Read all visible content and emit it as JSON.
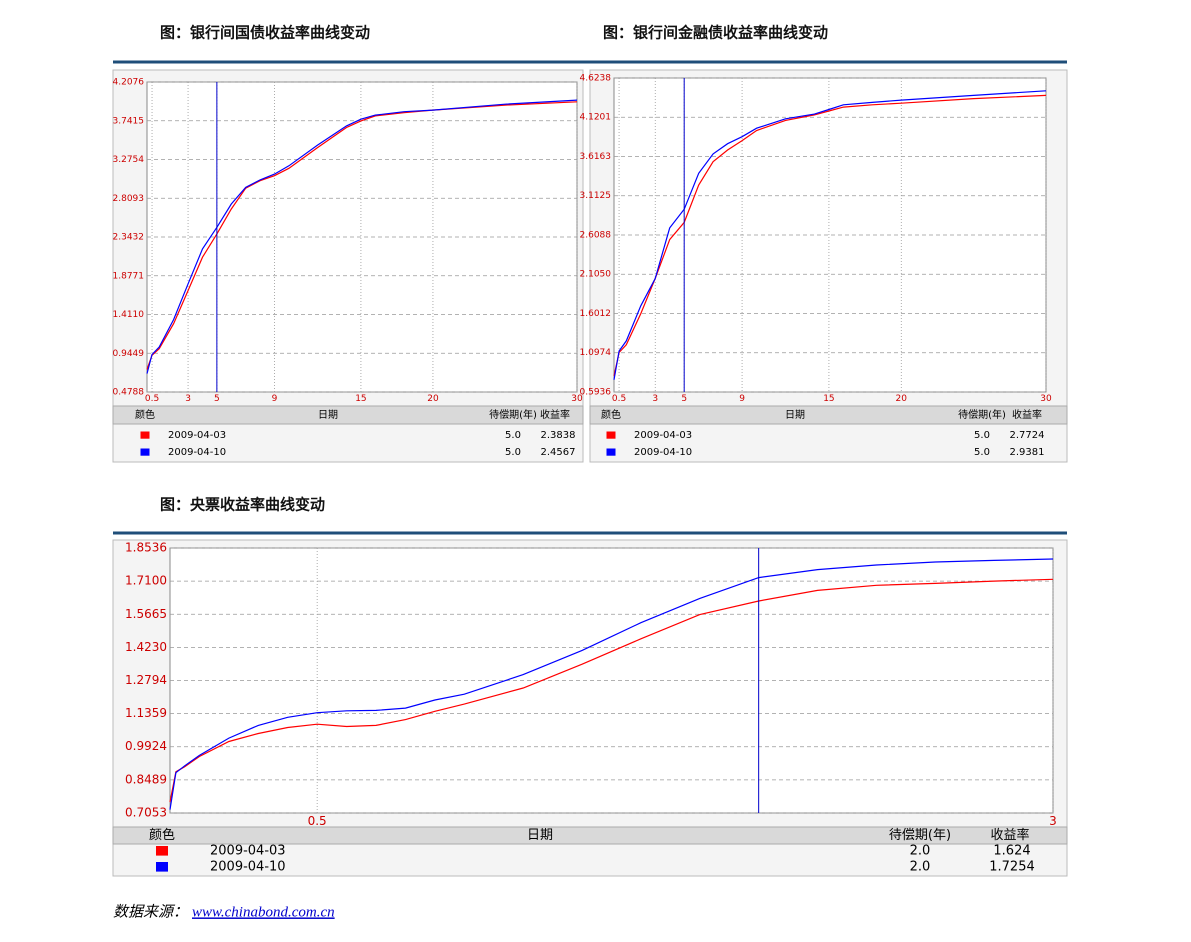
{
  "chart_data": [
    {
      "type": "line",
      "title": "图：银行间国债收益率曲线变动",
      "x": [
        0.15,
        0.5,
        1,
        2,
        3,
        4,
        5,
        6,
        7,
        8,
        9,
        10,
        12,
        14,
        15,
        16,
        18,
        20,
        25,
        30
      ],
      "series": [
        {
          "name": "2009-04-03",
          "color": "#ff0000",
          "values": [
            0.75,
            0.92,
            1.0,
            1.3,
            1.7,
            2.1,
            2.38,
            2.68,
            2.93,
            3.02,
            3.08,
            3.17,
            3.42,
            3.66,
            3.74,
            3.8,
            3.84,
            3.87,
            3.93,
            3.97
          ]
        },
        {
          "name": "2009-04-10",
          "color": "#0000ff",
          "values": [
            0.7,
            0.93,
            1.02,
            1.35,
            1.78,
            2.2,
            2.46,
            2.74,
            2.94,
            3.03,
            3.1,
            3.2,
            3.45,
            3.68,
            3.76,
            3.81,
            3.85,
            3.87,
            3.94,
            3.99
          ]
        }
      ],
      "xlim": [
        0.15,
        30
      ],
      "xticks": [
        0.5,
        3,
        5,
        9,
        15,
        20,
        30
      ],
      "ylim": [
        0.4788,
        4.2076
      ],
      "yticks": [
        0.4788,
        0.9449,
        {
          "value": 1.411,
          "label": "1.4110"
        },
        1.8771,
        2.3432,
        2.8093,
        3.2754,
        3.7415,
        4.2076
      ],
      "grid": true,
      "cursor_x": 5,
      "tick_color": "#cc0000",
      "table": {
        "columns": [
          "颜色",
          "日期",
          "待偿期(年)",
          "收益率"
        ],
        "rows": [
          [
            "5.0",
            "2.3838"
          ],
          [
            "5.0",
            "2.4567"
          ]
        ]
      }
    },
    {
      "type": "line",
      "title": "图：银行间金融债收益率曲线变动",
      "x": [
        0.15,
        0.5,
        1,
        2,
        3,
        4,
        5,
        6,
        7,
        8,
        9,
        10,
        12,
        14,
        15,
        16,
        18,
        20,
        25,
        30
      ],
      "series": [
        {
          "name": "2009-04-03",
          "color": "#ff0000",
          "values": [
            0.8,
            1.1,
            1.2,
            1.6,
            2.05,
            2.55,
            2.77,
            3.25,
            3.55,
            3.7,
            3.82,
            3.95,
            4.08,
            4.15,
            4.2,
            4.25,
            4.28,
            4.3,
            4.36,
            4.4
          ]
        },
        {
          "name": "2009-04-10",
          "color": "#0000ff",
          "values": [
            0.75,
            1.12,
            1.25,
            1.7,
            2.05,
            2.7,
            2.94,
            3.4,
            3.65,
            3.78,
            3.87,
            3.98,
            4.1,
            4.16,
            4.22,
            4.28,
            4.31,
            4.34,
            4.4,
            4.46
          ]
        }
      ],
      "xlim": [
        0.15,
        30
      ],
      "xticks": [
        0.5,
        3,
        5,
        9,
        15,
        20,
        30
      ],
      "ylim": [
        0.5936,
        4.6238
      ],
      "yticks": [
        0.5936,
        1.0974,
        1.6012,
        {
          "value": 2.105,
          "label": "2.1050"
        },
        2.6088,
        3.1125,
        3.6163,
        4.1201,
        4.6238
      ],
      "grid": true,
      "cursor_x": 5,
      "tick_color": "#cc0000",
      "table": {
        "columns": [
          "颜色",
          "日期",
          "待偿期(年)",
          "收益率"
        ],
        "rows": [
          [
            "5.0",
            "2.7724"
          ],
          [
            "5.0",
            "2.9381"
          ]
        ]
      }
    },
    {
      "type": "line",
      "title": "图：央票收益率曲线变动",
      "x": [
        0,
        0.02,
        0.05,
        0.1,
        0.2,
        0.3,
        0.4,
        0.5,
        0.6,
        0.7,
        0.8,
        0.9,
        1.0,
        1.2,
        1.4,
        1.6,
        1.8,
        2.0,
        2.2,
        2.4,
        2.6,
        2.8,
        3.0
      ],
      "series": [
        {
          "name": "2009-04-03",
          "color": "#ff0000",
          "values": [
            0.753,
            0.884,
            0.906,
            0.95,
            1.015,
            1.05,
            1.076,
            1.09,
            1.08,
            1.085,
            1.11,
            1.146,
            1.177,
            1.247,
            1.35,
            1.46,
            1.565,
            1.624,
            1.67,
            1.692,
            1.7,
            1.71,
            1.718
          ]
        },
        {
          "name": "2009-04-10",
          "color": "#0000ff",
          "values": [
            0.72,
            0.88,
            0.91,
            0.955,
            1.03,
            1.085,
            1.12,
            1.14,
            1.148,
            1.15,
            1.16,
            1.195,
            1.22,
            1.305,
            1.41,
            1.53,
            1.635,
            1.7254,
            1.76,
            1.78,
            1.793,
            1.8,
            1.806
          ]
        }
      ],
      "xlim": [
        0,
        3
      ],
      "xticks": [
        0.5,
        3
      ],
      "ylim": [
        0.7053,
        1.8536
      ],
      "yticks": [
        0.7053,
        0.8489,
        0.9924,
        1.1359,
        1.2794,
        {
          "value": 1.423,
          "label": "1.4230"
        },
        1.5665,
        {
          "value": 1.71,
          "label": "1.7100"
        },
        1.8536
      ],
      "grid": true,
      "cursor_x": 2.0,
      "tick_color": "#cc0000",
      "table": {
        "columns": [
          "颜色",
          "日期",
          "待偿期(年)",
          "收益率"
        ],
        "rows": [
          [
            "2.0",
            "1.624"
          ],
          [
            "2.0",
            "1.7254"
          ]
        ]
      }
    }
  ],
  "source": {
    "label": "数据来源：",
    "link": "www.chinabond.com.cn"
  }
}
